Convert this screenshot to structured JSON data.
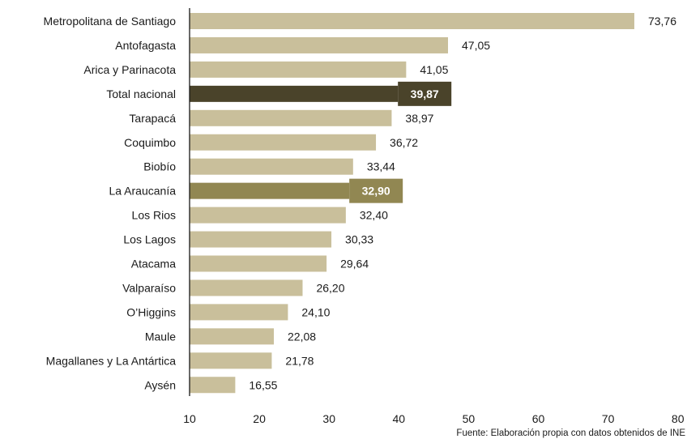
{
  "chart_data": {
    "type": "bar",
    "orientation": "horizontal",
    "categories": [
      "Metropolitana de Santiago",
      "Antofagasta",
      "Arica y Parinacota",
      "Total nacional",
      "Tarapacá",
      "Coquimbo",
      "Biobío",
      "La Araucanía",
      "Los Rios",
      "Los Lagos",
      "Atacama",
      "Valparaíso",
      "O’Higgins",
      "Maule",
      "Magallanes y La Antártica",
      "Aysén"
    ],
    "values": [
      73.76,
      47.05,
      41.05,
      39.87,
      38.97,
      36.72,
      33.44,
      32.9,
      32.4,
      30.33,
      29.64,
      26.2,
      24.1,
      22.08,
      21.78,
      16.55
    ],
    "value_labels": [
      "73,76",
      "47,05",
      "41,05",
      "39,87",
      "38,97",
      "36,72",
      "33,44",
      "32,90",
      "32,40",
      "30,33",
      "29,64",
      "26,20",
      "24,10",
      "22,08",
      "21,78",
      "16,55"
    ],
    "highlighted": {
      "Total nacional": "#4a432a",
      "La Araucanía": "#918752"
    },
    "bar_color": "#c9bf9b",
    "xlim": [
      10,
      80
    ],
    "x_ticks": [
      "10",
      "20",
      "30",
      "40",
      "50",
      "60",
      "70",
      "80"
    ],
    "grid": false,
    "legend": "none",
    "title": "",
    "xlabel": "",
    "ylabel": "",
    "source": "Fuente: Elaboración propia con datos obtenidos de INE"
  }
}
